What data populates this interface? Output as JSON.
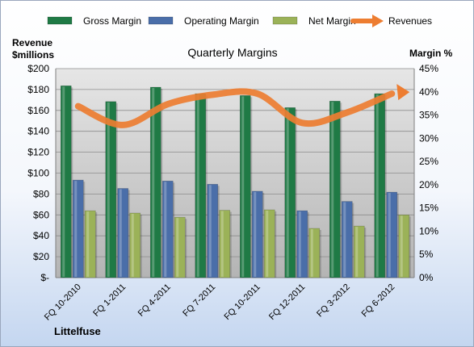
{
  "chart_data": {
    "type": "bar",
    "title": "Quarterly Margins",
    "left_axis_title": [
      "Revenue",
      "$millions"
    ],
    "right_axis_title": "Margin %",
    "company_label": "Littelfuse",
    "categories": [
      "FQ 10-2010",
      "FQ 1-2011",
      "FQ 4-2011",
      "FQ 7-2011",
      "FQ 10-2011",
      "FQ 12-2011",
      "FQ 3-2012",
      "FQ 6-2012"
    ],
    "left_axis": {
      "min": 0,
      "max": 200,
      "step": 20,
      "tick_labels": [
        "$-",
        "$20",
        "$40",
        "$60",
        "$80",
        "$100",
        "$120",
        "$140",
        "$160",
        "$180",
        "$200"
      ]
    },
    "right_axis": {
      "min": 0,
      "max": 45,
      "step": 5,
      "tick_labels": [
        "0%",
        "5%",
        "10%",
        "15%",
        "20%",
        "25%",
        "30%",
        "35%",
        "40%",
        "45%"
      ]
    },
    "series": [
      {
        "name": "Gross Margin",
        "kind": "bar",
        "axis": "right",
        "color": "#1f7a45",
        "values": [
          41.3,
          37.9,
          41.0,
          39.6,
          39.2,
          36.6,
          38.0,
          39.6
        ]
      },
      {
        "name": "Operating Margin",
        "kind": "bar",
        "axis": "right",
        "color": "#4a6ea9",
        "values": [
          21.0,
          19.2,
          20.8,
          20.1,
          18.6,
          14.4,
          16.4,
          18.4
        ]
      },
      {
        "name": "Net Margin",
        "kind": "bar",
        "axis": "right",
        "color": "#9bb258",
        "values": [
          14.4,
          13.9,
          13.0,
          14.5,
          14.6,
          10.6,
          11.1,
          13.5
        ]
      },
      {
        "name": "Revenues",
        "kind": "line",
        "axis": "left",
        "color": "#ed7d31",
        "values": [
          164,
          146,
          166,
          175,
          176,
          148,
          158,
          176
        ]
      }
    ],
    "grid": true,
    "legend_position": "top"
  }
}
